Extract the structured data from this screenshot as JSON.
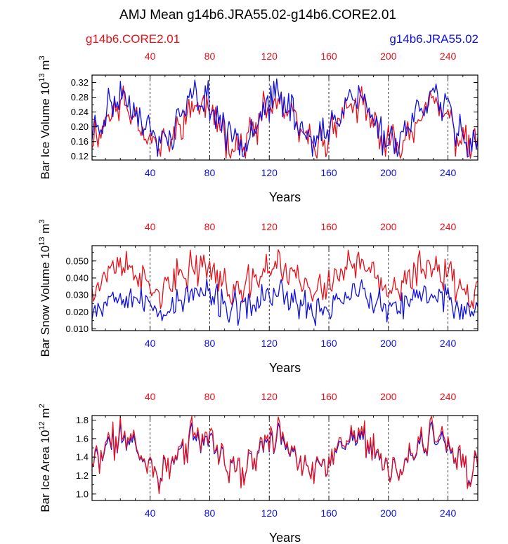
{
  "title": "AMJ Mean g14b6.JRA55.02-g14b6.CORE2.01",
  "legend": {
    "left_label": "g14b6.CORE2.01",
    "right_label": "g14b6.JRA55.02",
    "left_color": "#e8101a",
    "right_color": "#1010e0"
  },
  "colors": {
    "core": "#e8101a",
    "jra": "#1010e0",
    "axis": "#000000",
    "grid": "#000000"
  },
  "chart_data": [
    {
      "type": "line",
      "ylabel": "Bar Ice Volume 10",
      "ylabel_exp": "13",
      "ylabel_unit": " m",
      "ylabel_unit_exp": "3",
      "xlabel": "Years",
      "xlim": [
        1,
        260
      ],
      "ylim": [
        0.11,
        0.34
      ],
      "yticks": [
        0.12,
        0.16,
        0.2,
        0.24,
        0.28,
        0.32
      ],
      "ytick_labels": [
        "0.12",
        "0.16",
        "0.20",
        "0.24",
        "0.28",
        "0.32"
      ],
      "xticks": [
        40,
        80,
        120,
        160,
        200,
        240
      ],
      "xtick_labels": [
        "40",
        "80",
        "120",
        "160",
        "200",
        "240"
      ],
      "series": [
        {
          "name": "g14b6.CORE2.01",
          "color": "#e8101a",
          "base": 0.205,
          "amp": 0.055,
          "noise": 0.035,
          "seed": 11,
          "min": 0.115,
          "max": 0.33
        },
        {
          "name": "g14b6.JRA55.02",
          "color": "#1010e0",
          "base": 0.222,
          "amp": 0.06,
          "noise": 0.035,
          "seed": 23,
          "min": 0.12,
          "max": 0.335
        }
      ]
    },
    {
      "type": "line",
      "ylabel": "Bar Snow Volume 10",
      "ylabel_exp": "13",
      "ylabel_unit": " m",
      "ylabel_unit_exp": "3",
      "xlabel": "Years",
      "xlim": [
        1,
        260
      ],
      "ylim": [
        0.009,
        0.059
      ],
      "yticks": [
        0.01,
        0.02,
        0.03,
        0.04,
        0.05
      ],
      "ytick_labels": [
        "0.010",
        "0.020",
        "0.030",
        "0.040",
        "0.050"
      ],
      "xticks": [
        40,
        80,
        120,
        160,
        200,
        240
      ],
      "xtick_labels": [
        "40",
        "80",
        "120",
        "160",
        "200",
        "240"
      ],
      "series": [
        {
          "name": "g14b6.CORE2.01",
          "color": "#e8101a",
          "base": 0.04,
          "amp": 0.008,
          "noise": 0.008,
          "seed": 37,
          "min": 0.022,
          "max": 0.058
        },
        {
          "name": "g14b6.JRA55.02",
          "color": "#1010e0",
          "base": 0.026,
          "amp": 0.005,
          "noise": 0.007,
          "seed": 53,
          "min": 0.01,
          "max": 0.043
        }
      ]
    },
    {
      "type": "line",
      "ylabel": "Bar Ice Area 10",
      "ylabel_exp": "12",
      "ylabel_unit": " m",
      "ylabel_unit_exp": "2",
      "xlabel": "Years",
      "xlim": [
        1,
        260
      ],
      "ylim": [
        0.93,
        1.85
      ],
      "yticks": [
        1.0,
        1.2,
        1.4,
        1.6,
        1.8
      ],
      "ytick_labels": [
        "1.0",
        "1.2",
        "1.4",
        "1.6",
        "1.8"
      ],
      "xticks": [
        40,
        80,
        120,
        160,
        200,
        240
      ],
      "xtick_labels": [
        "40",
        "80",
        "120",
        "160",
        "200",
        "240"
      ],
      "series": [
        {
          "name": "g14b6.CORE2.01",
          "color": "#e8101a",
          "base": 1.45,
          "amp": 0.2,
          "noise": 0.14,
          "seed": 71,
          "min": 0.95,
          "max": 1.84
        },
        {
          "name": "g14b6.JRA55.02",
          "color": "#1010e0",
          "base": 1.43,
          "amp": 0.18,
          "noise": 0.12,
          "seed": 71,
          "min": 0.98,
          "max": 1.78
        }
      ]
    }
  ]
}
